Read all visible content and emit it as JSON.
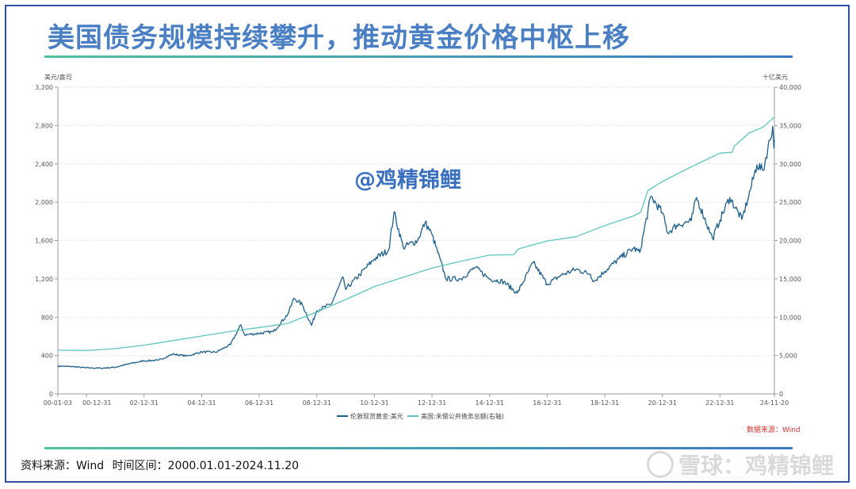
{
  "header": {
    "title": "美国债务规模持续攀升，推动黄金价格中枢上移"
  },
  "footer": {
    "source_label": "资料来源：Wind",
    "period_label": "时间区间：2000.01.01-2024.11.20",
    "brand_watermark": "雪球：鸡精锦鲤"
  },
  "chart_data": {
    "type": "line",
    "overlay_watermark": "@鸡精锦鲤",
    "data_source_note": "数据来源：Wind",
    "left_axis": {
      "unit": "美元/盎司",
      "ylim": [
        0,
        3200
      ],
      "ticks": [
        "0",
        "400",
        "800",
        "1,200",
        "1,600",
        "2,000",
        "2,400",
        "2,800",
        "3,200"
      ],
      "tick_values": [
        0,
        400,
        800,
        1200,
        1600,
        2000,
        2400,
        2800,
        3200
      ]
    },
    "right_axis": {
      "unit": "十亿美元",
      "ylim": [
        0,
        40000
      ],
      "ticks": [
        "0",
        "5,000",
        "10,000",
        "15,000",
        "20,000",
        "25,000",
        "30,000",
        "35,000",
        "40,000"
      ],
      "tick_values": [
        0,
        5000,
        10000,
        15000,
        20000,
        25000,
        30000,
        35000,
        40000
      ]
    },
    "x_axis": {
      "range": [
        "2000-01-03",
        "2024-11-20"
      ],
      "ticks": [
        "00-01-03",
        "00-12-31",
        "02-12-31",
        "04-12-31",
        "06-12-31",
        "08-12-31",
        "10-12-31",
        "12-12-31",
        "14-12-31",
        "16-12-31",
        "18-12-31",
        "20-12-31",
        "22-12-31",
        "24-11-20"
      ],
      "tick_dates": [
        "2000-01-03",
        "2000-12-31",
        "2002-12-31",
        "2004-12-31",
        "2006-12-31",
        "2008-12-31",
        "2010-12-31",
        "2012-12-31",
        "2014-12-31",
        "2016-12-31",
        "2018-12-31",
        "2020-12-31",
        "2022-12-31",
        "2024-11-20"
      ]
    },
    "grid": true,
    "legend_position": "bottom",
    "series": [
      {
        "name": "伦敦现货黄金:美元",
        "axis": "left",
        "color": "#1f5f8b",
        "points": [
          [
            "2000-01-03",
            290
          ],
          [
            "2000-06-30",
            285
          ],
          [
            "2000-12-31",
            272
          ],
          [
            "2001-06-30",
            268
          ],
          [
            "2001-12-31",
            278
          ],
          [
            "2002-06-30",
            315
          ],
          [
            "2002-12-31",
            345
          ],
          [
            "2003-06-30",
            350
          ],
          [
            "2003-12-31",
            415
          ],
          [
            "2004-06-30",
            395
          ],
          [
            "2004-12-31",
            438
          ],
          [
            "2005-06-30",
            435
          ],
          [
            "2005-12-31",
            513
          ],
          [
            "2006-05-12",
            720
          ],
          [
            "2006-06-30",
            615
          ],
          [
            "2006-12-31",
            632
          ],
          [
            "2007-06-30",
            650
          ],
          [
            "2007-12-31",
            834
          ],
          [
            "2008-03-17",
            1000
          ],
          [
            "2008-06-30",
            930
          ],
          [
            "2008-10-24",
            715
          ],
          [
            "2008-12-31",
            870
          ],
          [
            "2009-06-30",
            935
          ],
          [
            "2009-12-02",
            1215
          ],
          [
            "2009-12-31",
            1090
          ],
          [
            "2010-06-30",
            1245
          ],
          [
            "2010-12-31",
            1410
          ],
          [
            "2011-06-30",
            1500
          ],
          [
            "2011-09-06",
            1895
          ],
          [
            "2011-12-31",
            1530
          ],
          [
            "2012-06-30",
            1600
          ],
          [
            "2012-10-05",
            1790
          ],
          [
            "2012-12-31",
            1660
          ],
          [
            "2013-06-28",
            1200
          ],
          [
            "2013-12-31",
            1200
          ],
          [
            "2014-06-30",
            1320
          ],
          [
            "2014-12-31",
            1200
          ],
          [
            "2015-06-30",
            1170
          ],
          [
            "2015-12-17",
            1050
          ],
          [
            "2016-07-06",
            1370
          ],
          [
            "2016-12-31",
            1145
          ],
          [
            "2017-06-30",
            1240
          ],
          [
            "2017-12-31",
            1300
          ],
          [
            "2018-06-30",
            1250
          ],
          [
            "2018-08-16",
            1175
          ],
          [
            "2018-12-31",
            1280
          ],
          [
            "2019-06-30",
            1410
          ],
          [
            "2019-12-31",
            1520
          ],
          [
            "2020-03-19",
            1475
          ],
          [
            "2020-08-07",
            2060
          ],
          [
            "2020-12-31",
            1890
          ],
          [
            "2021-03-08",
            1680
          ],
          [
            "2021-06-30",
            1760
          ],
          [
            "2021-12-31",
            1805
          ],
          [
            "2022-03-08",
            2050
          ],
          [
            "2022-09-28",
            1620
          ],
          [
            "2022-12-31",
            1815
          ],
          [
            "2023-05-04",
            2050
          ],
          [
            "2023-10-05",
            1820
          ],
          [
            "2023-12-31",
            2065
          ],
          [
            "2024-04-12",
            2390
          ],
          [
            "2024-06-30",
            2330
          ],
          [
            "2024-10-30",
            2790
          ],
          [
            "2024-11-14",
            2565
          ],
          [
            "2024-11-20",
            2650
          ]
        ]
      },
      {
        "name": "美国:未偿公共债务总额(右轴)",
        "axis": "right",
        "color": "#5ec4bd",
        "points": [
          [
            "2000-01-03",
            5700
          ],
          [
            "2000-12-31",
            5650
          ],
          [
            "2001-12-31",
            5900
          ],
          [
            "2002-12-31",
            6350
          ],
          [
            "2003-12-31",
            6950
          ],
          [
            "2004-12-31",
            7550
          ],
          [
            "2005-12-31",
            8150
          ],
          [
            "2006-12-31",
            8650
          ],
          [
            "2007-12-31",
            9200
          ],
          [
            "2008-12-31",
            10700
          ],
          [
            "2009-12-31",
            12300
          ],
          [
            "2010-12-31",
            14000
          ],
          [
            "2011-12-31",
            15200
          ],
          [
            "2012-12-31",
            16400
          ],
          [
            "2013-12-31",
            17300
          ],
          [
            "2014-12-31",
            18100
          ],
          [
            "2015-10-30",
            18150
          ],
          [
            "2015-12-31",
            18900
          ],
          [
            "2016-12-31",
            19950
          ],
          [
            "2017-12-31",
            20500
          ],
          [
            "2018-12-31",
            21950
          ],
          [
            "2019-12-31",
            23200
          ],
          [
            "2020-03-31",
            23700
          ],
          [
            "2020-06-30",
            26500
          ],
          [
            "2020-12-31",
            27700
          ],
          [
            "2021-12-31",
            29600
          ],
          [
            "2022-12-31",
            31400
          ],
          [
            "2023-06-02",
            31500
          ],
          [
            "2023-06-30",
            32300
          ],
          [
            "2023-12-31",
            34000
          ],
          [
            "2024-06-30",
            34800
          ],
          [
            "2024-11-20",
            36100
          ]
        ]
      }
    ]
  }
}
